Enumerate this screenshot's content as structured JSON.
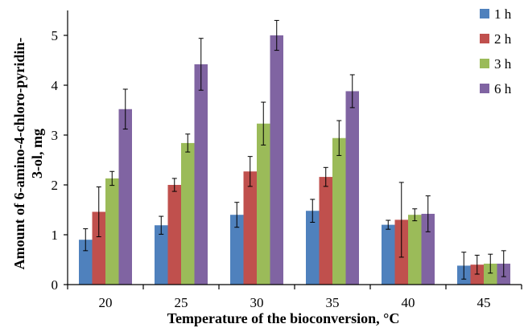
{
  "chart_data": {
    "type": "bar",
    "title": "",
    "xlabel": "Temperature of the bioconversion,  °C",
    "ylabel_lines": [
      "Amount of 6-amino-4-chloro-pyridin-",
      "3-ol, mg"
    ],
    "categories": [
      "20",
      "25",
      "30",
      "35",
      "40",
      "45"
    ],
    "ylim": [
      0,
      5.5
    ],
    "yticks": [
      "0",
      "1",
      "2",
      "3",
      "4",
      "5"
    ],
    "grid": false,
    "legend_position": "top-right",
    "series": [
      {
        "name": "1 h",
        "color": "#4F81BD",
        "values": [
          0.9,
          1.19,
          1.4,
          1.48,
          1.2,
          0.38
        ],
        "errors": [
          0.22,
          0.18,
          0.25,
          0.23,
          0.09,
          0.27
        ]
      },
      {
        "name": "2 h",
        "color": "#C0504D",
        "values": [
          1.46,
          2.0,
          2.27,
          2.16,
          1.3,
          0.4
        ],
        "errors": [
          0.5,
          0.13,
          0.3,
          0.19,
          0.75,
          0.19
        ]
      },
      {
        "name": "3 h",
        "color": "#9BBB59",
        "values": [
          2.13,
          2.84,
          3.23,
          2.94,
          1.4,
          0.42
        ],
        "errors": [
          0.14,
          0.18,
          0.43,
          0.35,
          0.12,
          0.19
        ]
      },
      {
        "name": "6 h",
        "color": "#8064A2",
        "values": [
          3.52,
          4.42,
          5.0,
          3.88,
          1.42,
          0.42
        ],
        "errors": [
          0.4,
          0.52,
          0.3,
          0.33,
          0.36,
          0.26
        ]
      }
    ]
  }
}
